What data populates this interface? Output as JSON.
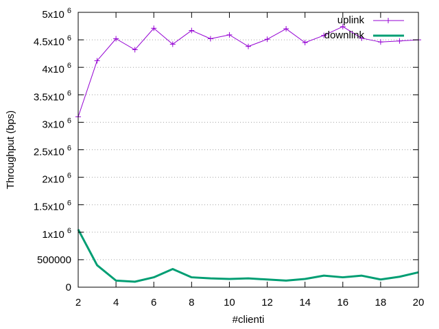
{
  "chart_data": {
    "type": "line",
    "title": "",
    "xlabel": "#clienti",
    "ylabel": "Throughput (bps)",
    "xlim": [
      2,
      20
    ],
    "ylim": [
      0,
      5000000
    ],
    "grid": "horizontal dotted",
    "legend_position": "top-right",
    "x_ticks": [
      {
        "v": 2,
        "label": "2"
      },
      {
        "v": 4,
        "label": "4"
      },
      {
        "v": 6,
        "label": "6"
      },
      {
        "v": 8,
        "label": "8"
      },
      {
        "v": 10,
        "label": "10"
      },
      {
        "v": 12,
        "label": "12"
      },
      {
        "v": 14,
        "label": "14"
      },
      {
        "v": 16,
        "label": "16"
      },
      {
        "v": 18,
        "label": "18"
      },
      {
        "v": 20,
        "label": "20"
      }
    ],
    "y_ticks": [
      {
        "v": 0,
        "base": "0",
        "exp": ""
      },
      {
        "v": 500000,
        "base": "500000",
        "exp": ""
      },
      {
        "v": 1000000,
        "base": "1x10",
        "exp": "6"
      },
      {
        "v": 1500000,
        "base": "1.5x10",
        "exp": "6"
      },
      {
        "v": 2000000,
        "base": "2x10",
        "exp": "6"
      },
      {
        "v": 2500000,
        "base": "2.5x10",
        "exp": "6"
      },
      {
        "v": 3000000,
        "base": "3x10",
        "exp": "6"
      },
      {
        "v": 3500000,
        "base": "3.5x10",
        "exp": "6"
      },
      {
        "v": 4000000,
        "base": "4x10",
        "exp": "6"
      },
      {
        "v": 4500000,
        "base": "4.5x10",
        "exp": "6"
      },
      {
        "v": 5000000,
        "base": "5x10",
        "exp": "6"
      }
    ],
    "x": [
      2,
      3,
      4,
      5,
      6,
      7,
      8,
      9,
      10,
      11,
      12,
      13,
      14,
      15,
      16,
      17,
      18,
      19,
      20
    ],
    "series": [
      {
        "name": "uplink",
        "color": "#9400d3",
        "marker": "plus",
        "values": [
          3100000,
          4120000,
          4520000,
          4320000,
          4710000,
          4420000,
          4670000,
          4520000,
          4590000,
          4380000,
          4510000,
          4700000,
          4450000,
          4580000,
          4740000,
          4530000,
          4460000,
          4480000,
          4500000
        ]
      },
      {
        "name": "downlink",
        "color": "#009e73",
        "marker": "none",
        "values": [
          1050000,
          400000,
          120000,
          100000,
          180000,
          330000,
          180000,
          160000,
          150000,
          160000,
          140000,
          120000,
          150000,
          210000,
          180000,
          210000,
          140000,
          190000,
          270000
        ]
      }
    ]
  }
}
